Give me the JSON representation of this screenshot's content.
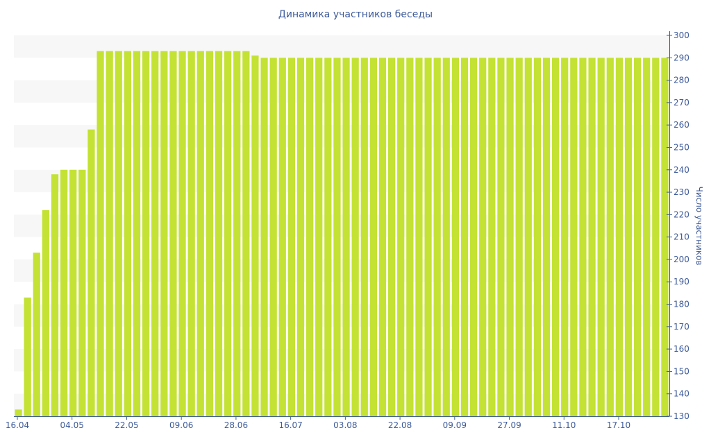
{
  "chart_data": {
    "type": "bar",
    "title": "Динамика участников беседы",
    "xlabel": "",
    "ylabel": "Число участников",
    "ylim": [
      130,
      300
    ],
    "y_ticks": [
      130,
      140,
      150,
      160,
      170,
      180,
      190,
      200,
      210,
      220,
      230,
      240,
      250,
      260,
      270,
      280,
      290,
      300
    ],
    "y_axis_side": "right",
    "x_tick_labels": [
      "16.04",
      "04.05",
      "22.05",
      "09.06",
      "28.06",
      "16.07",
      "03.08",
      "22.08",
      "09.09",
      "27.09",
      "11.10",
      "17.10"
    ],
    "grid": "alternating horizontal bands",
    "values": [
      133,
      183,
      203,
      222,
      238,
      240,
      240,
      240,
      258,
      293,
      293,
      293,
      293,
      293,
      293,
      293,
      293,
      293,
      293,
      293,
      293,
      293,
      293,
      293,
      293,
      293,
      291,
      290,
      290,
      290,
      290,
      290,
      290,
      290,
      290,
      290,
      290,
      290,
      290,
      290,
      290,
      290,
      290,
      290,
      290,
      290,
      290,
      290,
      290,
      290,
      290,
      290,
      290,
      290,
      290,
      290,
      290,
      290,
      290,
      290,
      290,
      290,
      290,
      290,
      290,
      290,
      290,
      290,
      290,
      290,
      290,
      290
    ],
    "colors": {
      "bar": "#c3e233",
      "axis": "#3e5b9a",
      "band": "#f7f7f7"
    }
  }
}
